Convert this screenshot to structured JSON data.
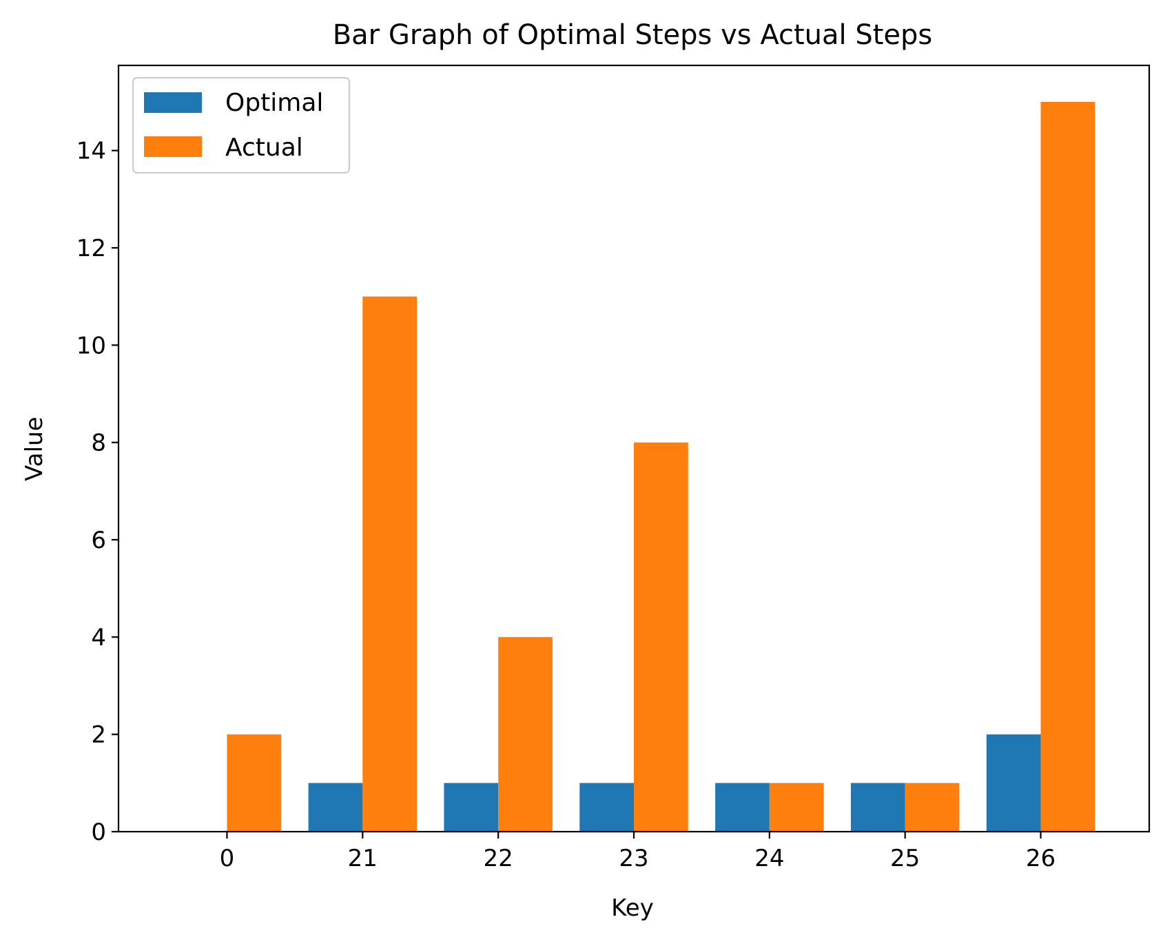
{
  "chart_data": {
    "type": "bar",
    "title": "Bar Graph of Optimal Steps vs Actual Steps",
    "xlabel": "Key",
    "ylabel": "Value",
    "categories": [
      "0",
      "21",
      "22",
      "23",
      "24",
      "25",
      "26"
    ],
    "series": [
      {
        "name": "Optimal",
        "color": "#1f77b4",
        "values": [
          0,
          1,
          1,
          1,
          1,
          1,
          2
        ]
      },
      {
        "name": "Actual",
        "color": "#ff7f0e",
        "values": [
          2,
          11,
          4,
          8,
          1,
          1,
          15
        ]
      }
    ],
    "ylim": [
      0,
      15.75
    ],
    "yticks": [
      0,
      2,
      4,
      6,
      8,
      10,
      12,
      14
    ],
    "grid": false,
    "legend_position": "top-left"
  }
}
